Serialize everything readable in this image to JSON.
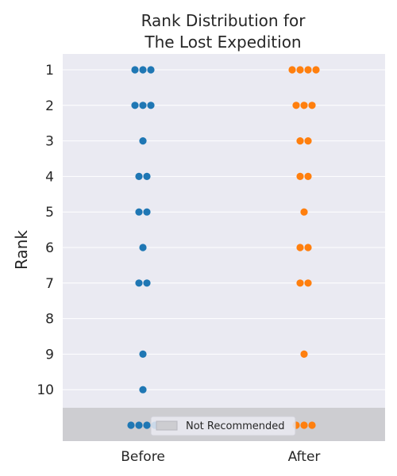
{
  "chart_data": {
    "type": "scatter",
    "title": "Rank Distribution for\nThe Lost Expedition",
    "ylabel": "Rank",
    "xlabel": "",
    "categories": [
      "Before",
      "After"
    ],
    "y_ticks": [
      "1",
      "2",
      "3",
      "4",
      "5",
      "6",
      "7",
      "8",
      "9",
      "10"
    ],
    "grid": true,
    "legend": {
      "label": "Not Recommended",
      "placement": "bottom-center"
    },
    "series": [
      {
        "color": "#1f77b4",
        "counts": [
          {
            "rank": "1",
            "count": 3
          },
          {
            "rank": "2",
            "count": 3
          },
          {
            "rank": "3",
            "count": 1
          },
          {
            "rank": "4",
            "count": 2
          },
          {
            "rank": "5",
            "count": 2
          },
          {
            "rank": "6",
            "count": 1
          },
          {
            "rank": "7",
            "count": 2
          },
          {
            "rank": "8",
            "count": 0
          },
          {
            "rank": "9",
            "count": 1
          },
          {
            "rank": "10",
            "count": 1
          },
          {
            "rank": "Not Recommended",
            "count": 4
          }
        ]
      },
      {
        "color": "#ff7f0e",
        "counts": [
          {
            "rank": "1",
            "count": 4
          },
          {
            "rank": "2",
            "count": 3
          },
          {
            "rank": "3",
            "count": 2
          },
          {
            "rank": "4",
            "count": 2
          },
          {
            "rank": "5",
            "count": 1
          },
          {
            "rank": "6",
            "count": 2
          },
          {
            "rank": "7",
            "count": 2
          },
          {
            "rank": "8",
            "count": 0
          },
          {
            "rank": "9",
            "count": 1
          },
          {
            "rank": "10",
            "count": 0
          },
          {
            "rank": "Not Recommended",
            "count": 3
          }
        ]
      }
    ]
  },
  "colors": {
    "plot_background": "#eaeaf2",
    "not_recommended_band": "#cdcdd1",
    "grid": "#ffffff"
  }
}
